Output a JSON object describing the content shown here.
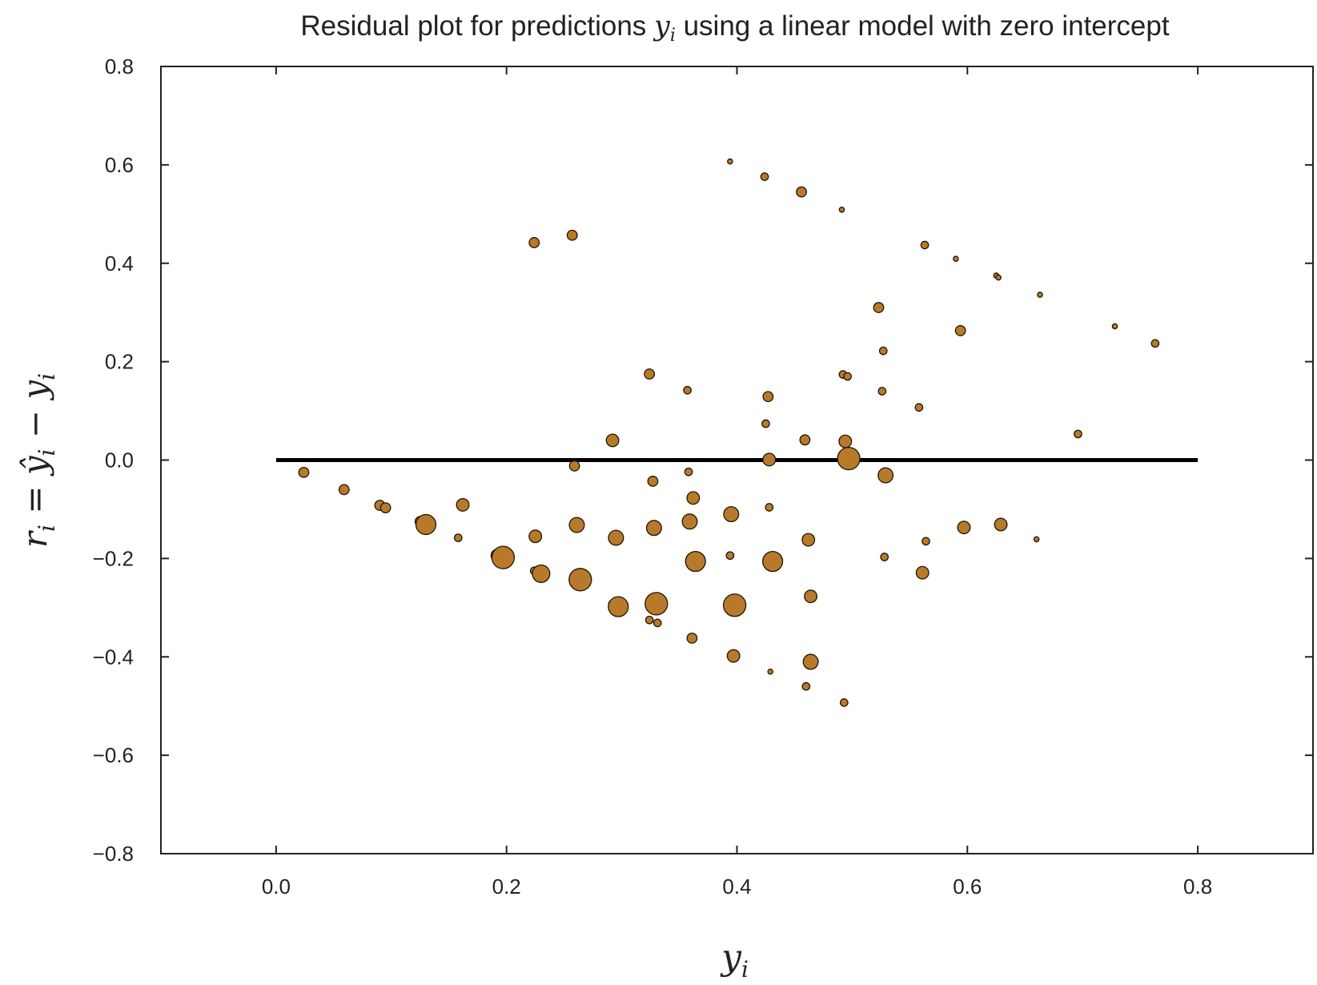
{
  "chart_data": {
    "type": "scatter",
    "title": "Residual plot for predictions yᵢ using a linear model with zero intercept",
    "xlabel": "yᵢ",
    "ylabel": "rᵢ = ŷᵢ − yᵢ",
    "xlim": [
      -0.1,
      0.9
    ],
    "ylim": [
      -0.8,
      0.8
    ],
    "x_ticks": [
      0.0,
      0.2,
      0.4,
      0.6,
      0.8
    ],
    "x_tick_labels": [
      "0.0",
      "0.2",
      "0.4",
      "0.6",
      "0.8"
    ],
    "y_ticks": [
      -0.8,
      -0.6,
      -0.4,
      -0.2,
      0.0,
      0.2,
      0.4,
      0.6,
      0.8
    ],
    "y_tick_labels": [
      "−0.8",
      "−0.6",
      "−0.4",
      "−0.2",
      "0.0",
      "0.2",
      "0.4",
      "0.6",
      "0.8"
    ],
    "grid": false,
    "reference_line": {
      "y": 0.0,
      "x_range": [
        0.0,
        0.8
      ],
      "color": "#000000"
    },
    "marker_color": "#b87a2a",
    "marker_edge_color": "#1e1406",
    "points": [
      {
        "x": 0.024,
        "y": -0.025,
        "s": 3
      },
      {
        "x": 0.059,
        "y": -0.06,
        "s": 3
      },
      {
        "x": 0.09,
        "y": -0.092,
        "s": 3
      },
      {
        "x": 0.095,
        "y": -0.097,
        "s": 3
      },
      {
        "x": 0.125,
        "y": -0.125,
        "s": 3
      },
      {
        "x": 0.13,
        "y": -0.131,
        "s": 7
      },
      {
        "x": 0.158,
        "y": -0.158,
        "s": 2
      },
      {
        "x": 0.162,
        "y": -0.091,
        "s": 4
      },
      {
        "x": 0.192,
        "y": -0.194,
        "s": 4
      },
      {
        "x": 0.197,
        "y": -0.198,
        "s": 8
      },
      {
        "x": 0.224,
        "y": 0.442,
        "s": 3
      },
      {
        "x": 0.225,
        "y": -0.155,
        "s": 4
      },
      {
        "x": 0.224,
        "y": -0.225,
        "s": 2
      },
      {
        "x": 0.23,
        "y": -0.231,
        "s": 6
      },
      {
        "x": 0.257,
        "y": 0.457,
        "s": 3
      },
      {
        "x": 0.259,
        "y": -0.012,
        "s": 3
      },
      {
        "x": 0.261,
        "y": -0.132,
        "s": 5
      },
      {
        "x": 0.264,
        "y": -0.243,
        "s": 8
      },
      {
        "x": 0.292,
        "y": 0.04,
        "s": 4
      },
      {
        "x": 0.292,
        "y": -0.292,
        "s": 2
      },
      {
        "x": 0.295,
        "y": -0.158,
        "s": 5
      },
      {
        "x": 0.297,
        "y": -0.298,
        "s": 7
      },
      {
        "x": 0.324,
        "y": 0.175,
        "s": 3
      },
      {
        "x": 0.324,
        "y": -0.325,
        "s": 2
      },
      {
        "x": 0.327,
        "y": -0.043,
        "s": 3
      },
      {
        "x": 0.328,
        "y": -0.138,
        "s": 5
      },
      {
        "x": 0.33,
        "y": -0.292,
        "s": 8
      },
      {
        "x": 0.331,
        "y": -0.331,
        "s": 2
      },
      {
        "x": 0.357,
        "y": 0.142,
        "s": 2
      },
      {
        "x": 0.358,
        "y": -0.024,
        "s": 2
      },
      {
        "x": 0.359,
        "y": -0.125,
        "s": 5
      },
      {
        "x": 0.361,
        "y": -0.362,
        "s": 3
      },
      {
        "x": 0.362,
        "y": -0.077,
        "s": 4
      },
      {
        "x": 0.364,
        "y": -0.206,
        "s": 7
      },
      {
        "x": 0.394,
        "y": 0.607,
        "s": 1
      },
      {
        "x": 0.394,
        "y": -0.194,
        "s": 2
      },
      {
        "x": 0.395,
        "y": -0.11,
        "s": 5
      },
      {
        "x": 0.397,
        "y": -0.398,
        "s": 4
      },
      {
        "x": 0.398,
        "y": -0.295,
        "s": 8
      },
      {
        "x": 0.424,
        "y": 0.576,
        "s": 2
      },
      {
        "x": 0.425,
        "y": 0.074,
        "s": 2
      },
      {
        "x": 0.427,
        "y": 0.129,
        "s": 3
      },
      {
        "x": 0.428,
        "y": 0.001,
        "s": 4
      },
      {
        "x": 0.428,
        "y": -0.096,
        "s": 2
      },
      {
        "x": 0.429,
        "y": -0.43,
        "s": 1
      },
      {
        "x": 0.431,
        "y": -0.206,
        "s": 7
      },
      {
        "x": 0.456,
        "y": 0.545,
        "s": 3
      },
      {
        "x": 0.459,
        "y": 0.041,
        "s": 3
      },
      {
        "x": 0.46,
        "y": -0.46,
        "s": 2
      },
      {
        "x": 0.462,
        "y": -0.162,
        "s": 4
      },
      {
        "x": 0.464,
        "y": -0.277,
        "s": 4
      },
      {
        "x": 0.464,
        "y": -0.41,
        "s": 5
      },
      {
        "x": 0.491,
        "y": 0.509,
        "s": 1
      },
      {
        "x": 0.492,
        "y": 0.174,
        "s": 2
      },
      {
        "x": 0.493,
        "y": -0.493,
        "s": 2
      },
      {
        "x": 0.494,
        "y": 0.038,
        "s": 4
      },
      {
        "x": 0.496,
        "y": 0.17,
        "s": 2
      },
      {
        "x": 0.497,
        "y": 0.003,
        "s": 8
      },
      {
        "x": 0.523,
        "y": 0.31,
        "s": 3
      },
      {
        "x": 0.526,
        "y": 0.14,
        "s": 2
      },
      {
        "x": 0.527,
        "y": 0.222,
        "s": 2
      },
      {
        "x": 0.528,
        "y": -0.197,
        "s": 2
      },
      {
        "x": 0.529,
        "y": -0.031,
        "s": 5
      },
      {
        "x": 0.558,
        "y": 0.107,
        "s": 2
      },
      {
        "x": 0.561,
        "y": -0.229,
        "s": 4
      },
      {
        "x": 0.563,
        "y": 0.437,
        "s": 2
      },
      {
        "x": 0.564,
        "y": -0.165,
        "s": 2
      },
      {
        "x": 0.59,
        "y": 0.409,
        "s": 1
      },
      {
        "x": 0.594,
        "y": 0.263,
        "s": 3
      },
      {
        "x": 0.597,
        "y": -0.137,
        "s": 4
      },
      {
        "x": 0.625,
        "y": 0.375,
        "s": 1
      },
      {
        "x": 0.627,
        "y": 0.371,
        "s": 1
      },
      {
        "x": 0.629,
        "y": -0.131,
        "s": 4
      },
      {
        "x": 0.66,
        "y": -0.161,
        "s": 1
      },
      {
        "x": 0.663,
        "y": 0.336,
        "s": 1
      },
      {
        "x": 0.696,
        "y": 0.053,
        "s": 2
      },
      {
        "x": 0.728,
        "y": 0.272,
        "s": 1
      },
      {
        "x": 0.763,
        "y": 0.237,
        "s": 2
      }
    ]
  }
}
